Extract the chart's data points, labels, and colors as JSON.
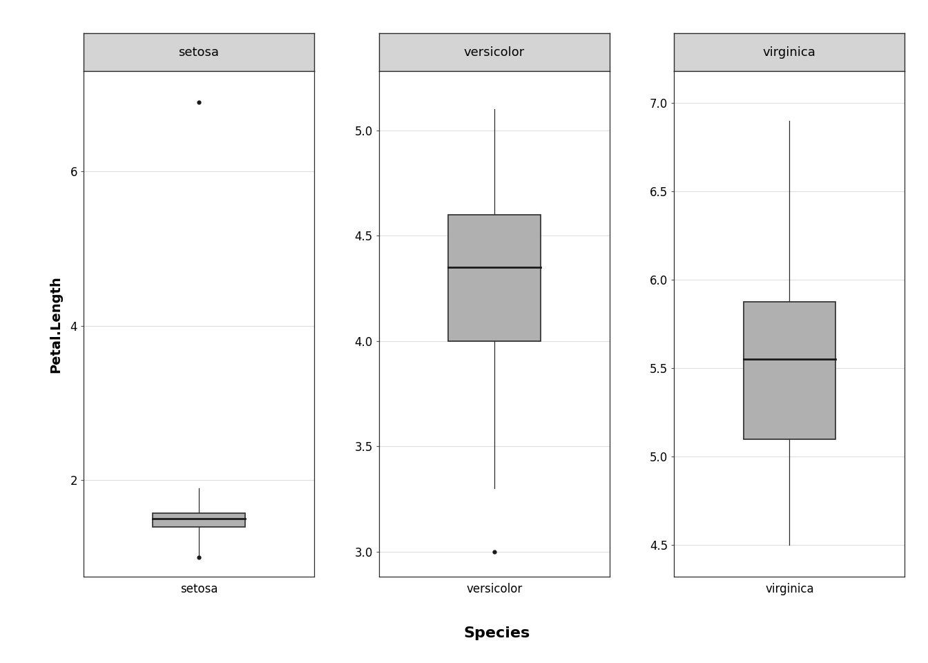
{
  "species": [
    "setosa",
    "versicolor",
    "virginica"
  ],
  "setosa": {
    "whisker_low": 1.0,
    "q1": 1.4,
    "median": 1.5,
    "q3": 1.575,
    "whisker_high": 1.9,
    "flier_low": [
      1.0
    ],
    "flier_high": [
      6.9
    ],
    "ylim": [
      0.75,
      7.3
    ],
    "yticks": [
      2,
      4,
      6
    ],
    "ytick_labels": [
      "2",
      "4",
      "6"
    ]
  },
  "versicolor": {
    "whisker_low": 3.3,
    "q1": 4.0,
    "median": 4.35,
    "q3": 4.6,
    "whisker_high": 5.1,
    "flier_low": [
      3.0
    ],
    "flier_high": [],
    "ylim": [
      2.88,
      5.28
    ],
    "yticks": [
      3.0,
      3.5,
      4.0,
      4.5,
      5.0
    ],
    "ytick_labels": [
      "3.0",
      "3.5",
      "4.0",
      "4.5",
      "5.0"
    ]
  },
  "virginica": {
    "whisker_low": 4.5,
    "q1": 5.1,
    "median": 5.55,
    "q3": 5.875,
    "whisker_high": 6.9,
    "flier_low": [],
    "flier_high": [],
    "ylim": [
      4.32,
      7.18
    ],
    "yticks": [
      4.5,
      5.0,
      5.5,
      6.0,
      6.5,
      7.0
    ],
    "ytick_labels": [
      "4.5",
      "5.0",
      "5.5",
      "6.0",
      "6.5",
      "7.0"
    ]
  },
  "box_color": "#b0b0b0",
  "box_edgecolor": "#2a2a2a",
  "median_color": "#1a1a1a",
  "whisker_color": "#2a2a2a",
  "flier_color": "#1a1a1a",
  "background_color": "#ffffff",
  "panel_bg": "#ffffff",
  "strip_bg": "#d4d4d4",
  "strip_text_color": "#000000",
  "grid_color": "#dddddd",
  "outer_border_color": "#2a2a2a",
  "ylabel": "Petal.Length",
  "xlabel": "Species",
  "title_fontsize": 16,
  "axis_fontsize": 14,
  "strip_fontsize": 13,
  "tick_fontsize": 12
}
